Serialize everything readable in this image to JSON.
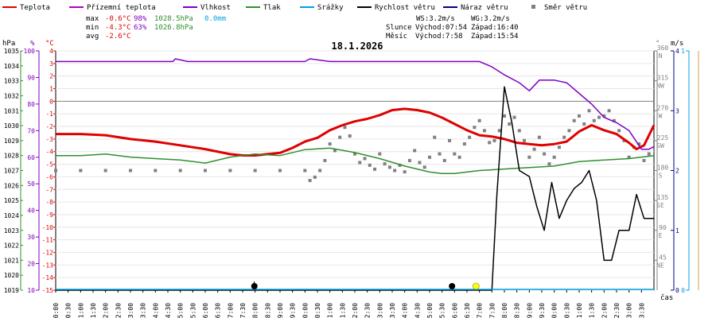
{
  "legend": [
    {
      "name": "Teplota",
      "color": "#e00000",
      "kind": "line"
    },
    {
      "name": "Přízemní teplota",
      "color": "#b000c0",
      "kind": "line"
    },
    {
      "name": "Vlhkost",
      "color": "#8000c0",
      "kind": "line"
    },
    {
      "name": "Tlak",
      "color": "#2f8f2f",
      "kind": "line"
    },
    {
      "name": "Srážky",
      "color": "#00a0e0",
      "kind": "line"
    },
    {
      "name": "Rychlost větru",
      "color": "#000000",
      "kind": "line"
    },
    {
      "name": "Náraz větru",
      "color": "#000080",
      "kind": "line"
    },
    {
      "name": "Směr větru",
      "color": "#808080",
      "kind": "square"
    }
  ],
  "stats": [
    {
      "label": "max",
      "temp": "-0.6°C",
      "hum": "98%",
      "press": "1028.5hPa",
      "rain": "0.0mm"
    },
    {
      "label": "min",
      "temp": "-4.3°C",
      "hum": "63%",
      "press": "1026.8hPa",
      "rain": ""
    },
    {
      "label": "avg",
      "temp": "-2.6°C",
      "hum": "",
      "press": "",
      "rain": ""
    }
  ],
  "wind_info": {
    "ws": "WS:3.2m/s",
    "wg": "WG:3.2m/s"
  },
  "sun_info": {
    "label": "Slunce",
    "rise": "Východ:07:54",
    "set": "Západ:16:40"
  },
  "moon_info": {
    "label": "Měsíc",
    "rise": "Východ:7:58",
    "set": "Západ:15:54"
  },
  "axis_units": {
    "pressure": "hPa",
    "humidity": "%",
    "temperature": "°C",
    "wind_dir": "°",
    "wind_speed": "m/s",
    "time": "čas"
  },
  "colors": {
    "pressure_axis": "#2f8f2f",
    "humidity_axis": "#8000c0",
    "temp_axis": "#e00000",
    "dir_axis": "#808080",
    "speed_axis": "#000080",
    "rain_axis": "#00a0e0",
    "rain_axis2": "#c8a050"
  },
  "chart_data": {
    "type": "line",
    "title": "18.1.2026",
    "x_unit": "hours",
    "x_tick_labels": [
      "00:00",
      "00:30",
      "01:00",
      "01:30",
      "02:00",
      "02:30",
      "03:00",
      "03:30",
      "04:00",
      "04:30",
      "05:00",
      "05:30",
      "06:00",
      "06:30",
      "07:00",
      "07:30",
      "08:00",
      "08:30",
      "09:00",
      "09:30",
      "10:00",
      "10:30",
      "11:00",
      "11:30",
      "12:00",
      "12:30",
      "13:00",
      "13:30",
      "14:00",
      "14:30",
      "15:00",
      "15:30",
      "16:00",
      "16:30",
      "17:00",
      "17:30",
      "18:00",
      "18:30",
      "19:00",
      "19:30",
      "20:00",
      "20:30",
      "21:00",
      "21:30",
      "22:00",
      "22:30",
      "23:00",
      "23:30"
    ],
    "axes": {
      "pressure": {
        "range": [
          1019,
          1035
        ],
        "ticks": [
          1019,
          1020,
          1021,
          1022,
          1023,
          1024,
          1025,
          1026,
          1027,
          1028,
          1029,
          1030,
          1031,
          1032,
          1033,
          1034,
          1035
        ]
      },
      "humidity": {
        "range": [
          10,
          100
        ],
        "ticks": [
          10,
          20,
          30,
          40,
          50,
          60,
          70,
          80,
          90,
          100
        ]
      },
      "temperature": {
        "range": [
          -15,
          4
        ],
        "ticks": [
          -15,
          -14,
          -13,
          -12,
          -11,
          -10,
          -9,
          -8,
          -7,
          -6,
          -5,
          -4,
          -3,
          -2,
          -1,
          0,
          1,
          2,
          3,
          4
        ]
      },
      "wind_direction": {
        "range": [
          0,
          360
        ],
        "ticks": [
          {
            "v": 45,
            "l": "45",
            "d": "NE"
          },
          {
            "v": 90,
            "l": "90",
            "d": "E"
          },
          {
            "v": 135,
            "l": "135",
            "d": "SE"
          },
          {
            "v": 180,
            "l": "180",
            "d": "S"
          },
          {
            "v": 225,
            "l": "225",
            "d": "SW"
          },
          {
            "v": 270,
            "l": "270",
            "d": "W"
          },
          {
            "v": 315,
            "l": "315",
            "d": "NW"
          },
          {
            "v": 360,
            "l": "360",
            "d": "N"
          }
        ]
      },
      "wind_speed": {
        "range": [
          0,
          4
        ],
        "ticks": [
          0,
          1,
          2,
          3,
          4
        ]
      },
      "rain": {
        "range": [
          0,
          1
        ],
        "ticks": [
          0,
          1
        ]
      }
    },
    "sun_markers": [
      {
        "t": 7.9,
        "kind": "sunrise"
      },
      {
        "t": 16.67,
        "kind": "sunset"
      }
    ],
    "moon_markers": [
      {
        "t": 7.97,
        "kind": "moonrise"
      },
      {
        "t": 15.9,
        "kind": "moonset"
      }
    ],
    "series": [
      {
        "name": "Teplota",
        "axis": "temperature",
        "color": "#e00000",
        "points": [
          [
            0,
            -2.6
          ],
          [
            1,
            -2.6
          ],
          [
            2,
            -2.7
          ],
          [
            3,
            -3.0
          ],
          [
            4,
            -3.2
          ],
          [
            5,
            -3.5
          ],
          [
            6,
            -3.8
          ],
          [
            7,
            -4.2
          ],
          [
            7.5,
            -4.3
          ],
          [
            8,
            -4.3
          ],
          [
            9,
            -4.1
          ],
          [
            9.5,
            -3.7
          ],
          [
            10,
            -3.2
          ],
          [
            10.5,
            -2.9
          ],
          [
            11,
            -2.3
          ],
          [
            11.5,
            -1.9
          ],
          [
            12,
            -1.6
          ],
          [
            12.5,
            -1.4
          ],
          [
            13,
            -1.1
          ],
          [
            13.5,
            -0.7
          ],
          [
            14,
            -0.6
          ],
          [
            14.5,
            -0.7
          ],
          [
            15,
            -0.9
          ],
          [
            15.5,
            -1.3
          ],
          [
            16,
            -1.8
          ],
          [
            16.5,
            -2.3
          ],
          [
            17,
            -2.7
          ],
          [
            17.5,
            -2.8
          ],
          [
            18,
            -3.0
          ],
          [
            18.5,
            -3.3
          ],
          [
            19,
            -3.4
          ],
          [
            19.5,
            -3.5
          ],
          [
            20,
            -3.4
          ],
          [
            20.5,
            -3.2
          ],
          [
            21,
            -2.4
          ],
          [
            21.5,
            -1.9
          ],
          [
            22,
            -2.3
          ],
          [
            22.5,
            -2.6
          ],
          [
            23,
            -3.3
          ],
          [
            23.3,
            -3.8
          ],
          [
            23.6,
            -3.5
          ],
          [
            24,
            -1.9
          ]
        ]
      },
      {
        "name": "Vlhkost",
        "axis": "humidity",
        "color": "#8000c0",
        "points": [
          [
            0,
            96
          ],
          [
            4.7,
            96
          ],
          [
            4.8,
            97
          ],
          [
            5.3,
            96
          ],
          [
            10,
            96
          ],
          [
            10.2,
            97
          ],
          [
            11,
            96
          ],
          [
            17,
            96
          ],
          [
            17.5,
            94
          ],
          [
            18,
            91
          ],
          [
            18.6,
            88
          ],
          [
            19,
            85
          ],
          [
            19.4,
            89
          ],
          [
            20,
            89
          ],
          [
            20.5,
            88
          ],
          [
            21,
            84
          ],
          [
            21.5,
            80
          ],
          [
            22,
            75
          ],
          [
            22.5,
            73
          ],
          [
            23,
            70
          ],
          [
            23.5,
            63
          ],
          [
            23.8,
            63
          ],
          [
            24,
            64
          ]
        ]
      },
      {
        "name": "Tlak",
        "axis": "pressure",
        "color": "#2f8f2f",
        "points": [
          [
            0,
            1028.0
          ],
          [
            1,
            1028.0
          ],
          [
            2,
            1028.1
          ],
          [
            3,
            1027.9
          ],
          [
            4,
            1027.8
          ],
          [
            5,
            1027.7
          ],
          [
            6,
            1027.5
          ],
          [
            7,
            1027.9
          ],
          [
            8,
            1028.1
          ],
          [
            9,
            1028.0
          ],
          [
            10,
            1028.4
          ],
          [
            11,
            1028.5
          ],
          [
            12,
            1028.2
          ],
          [
            13,
            1027.8
          ],
          [
            14,
            1027.3
          ],
          [
            15,
            1026.9
          ],
          [
            15.5,
            1026.8
          ],
          [
            16,
            1026.8
          ],
          [
            17,
            1027.0
          ],
          [
            18,
            1027.1
          ],
          [
            19,
            1027.2
          ],
          [
            20,
            1027.3
          ],
          [
            21,
            1027.6
          ],
          [
            22,
            1027.7
          ],
          [
            23,
            1027.8
          ],
          [
            24,
            1028.0
          ]
        ]
      },
      {
        "name": "Rychlost větru",
        "axis": "wind_speed",
        "color": "#000000",
        "points": [
          [
            0,
            0
          ],
          [
            17,
            0
          ],
          [
            17.5,
            0
          ],
          [
            17.7,
            1.6
          ],
          [
            18.0,
            3.4
          ],
          [
            18.3,
            2.8
          ],
          [
            18.6,
            2.0
          ],
          [
            19.0,
            1.9
          ],
          [
            19.3,
            1.4
          ],
          [
            19.6,
            1.0
          ],
          [
            19.9,
            1.8
          ],
          [
            20.2,
            1.2
          ],
          [
            20.5,
            1.5
          ],
          [
            20.8,
            1.7
          ],
          [
            21.1,
            1.8
          ],
          [
            21.4,
            2.0
          ],
          [
            21.7,
            1.5
          ],
          [
            22.0,
            0.5
          ],
          [
            22.3,
            0.5
          ],
          [
            22.6,
            1.0
          ],
          [
            23.0,
            1.0
          ],
          [
            23.3,
            1.6
          ],
          [
            23.6,
            1.2
          ],
          [
            24,
            1.2
          ]
        ]
      }
    ],
    "wind_direction_points": [
      [
        0,
        180
      ],
      [
        1,
        180
      ],
      [
        2,
        180
      ],
      [
        3,
        180
      ],
      [
        4,
        180
      ],
      [
        5,
        180
      ],
      [
        6,
        180
      ],
      [
        7,
        180
      ],
      [
        8,
        180
      ],
      [
        9,
        180
      ],
      [
        10.0,
        180
      ],
      [
        10.2,
        165
      ],
      [
        10.4,
        170
      ],
      [
        10.6,
        180
      ],
      [
        10.8,
        195
      ],
      [
        11.0,
        220
      ],
      [
        11.2,
        210
      ],
      [
        11.4,
        230
      ],
      [
        11.6,
        245
      ],
      [
        11.8,
        232
      ],
      [
        12.0,
        205
      ],
      [
        12.2,
        192
      ],
      [
        12.4,
        198
      ],
      [
        12.6,
        188
      ],
      [
        12.8,
        182
      ],
      [
        13.0,
        205
      ],
      [
        13.2,
        190
      ],
      [
        13.4,
        185
      ],
      [
        13.6,
        180
      ],
      [
        13.8,
        188
      ],
      [
        14.0,
        178
      ],
      [
        14.2,
        195
      ],
      [
        14.4,
        210
      ],
      [
        14.6,
        192
      ],
      [
        14.8,
        185
      ],
      [
        15.0,
        200
      ],
      [
        15.2,
        230
      ],
      [
        15.4,
        205
      ],
      [
        15.6,
        195
      ],
      [
        15.8,
        225
      ],
      [
        16.0,
        205
      ],
      [
        16.2,
        200
      ],
      [
        16.4,
        220
      ],
      [
        16.6,
        230
      ],
      [
        16.8,
        245
      ],
      [
        17.0,
        255
      ],
      [
        17.2,
        240
      ],
      [
        17.4,
        222
      ],
      [
        17.6,
        225
      ],
      [
        17.8,
        240
      ],
      [
        18.0,
        262
      ],
      [
        18.2,
        250
      ],
      [
        18.4,
        260
      ],
      [
        18.6,
        240
      ],
      [
        18.8,
        225
      ],
      [
        19.0,
        200
      ],
      [
        19.2,
        212
      ],
      [
        19.4,
        230
      ],
      [
        19.6,
        205
      ],
      [
        19.8,
        190
      ],
      [
        20.0,
        200
      ],
      [
        20.2,
        215
      ],
      [
        20.4,
        230
      ],
      [
        20.6,
        240
      ],
      [
        20.8,
        255
      ],
      [
        21.0,
        262
      ],
      [
        21.2,
        250
      ],
      [
        21.4,
        270
      ],
      [
        21.6,
        255
      ],
      [
        21.8,
        260
      ],
      [
        22.0,
        262
      ],
      [
        22.2,
        270
      ],
      [
        22.4,
        255
      ],
      [
        22.6,
        240
      ],
      [
        22.8,
        225
      ],
      [
        23.0,
        200
      ],
      [
        23.2,
        215
      ],
      [
        23.4,
        220
      ],
      [
        23.6,
        195
      ],
      [
        23.8,
        205
      ]
    ],
    "rain_total_mm": 0.0
  }
}
